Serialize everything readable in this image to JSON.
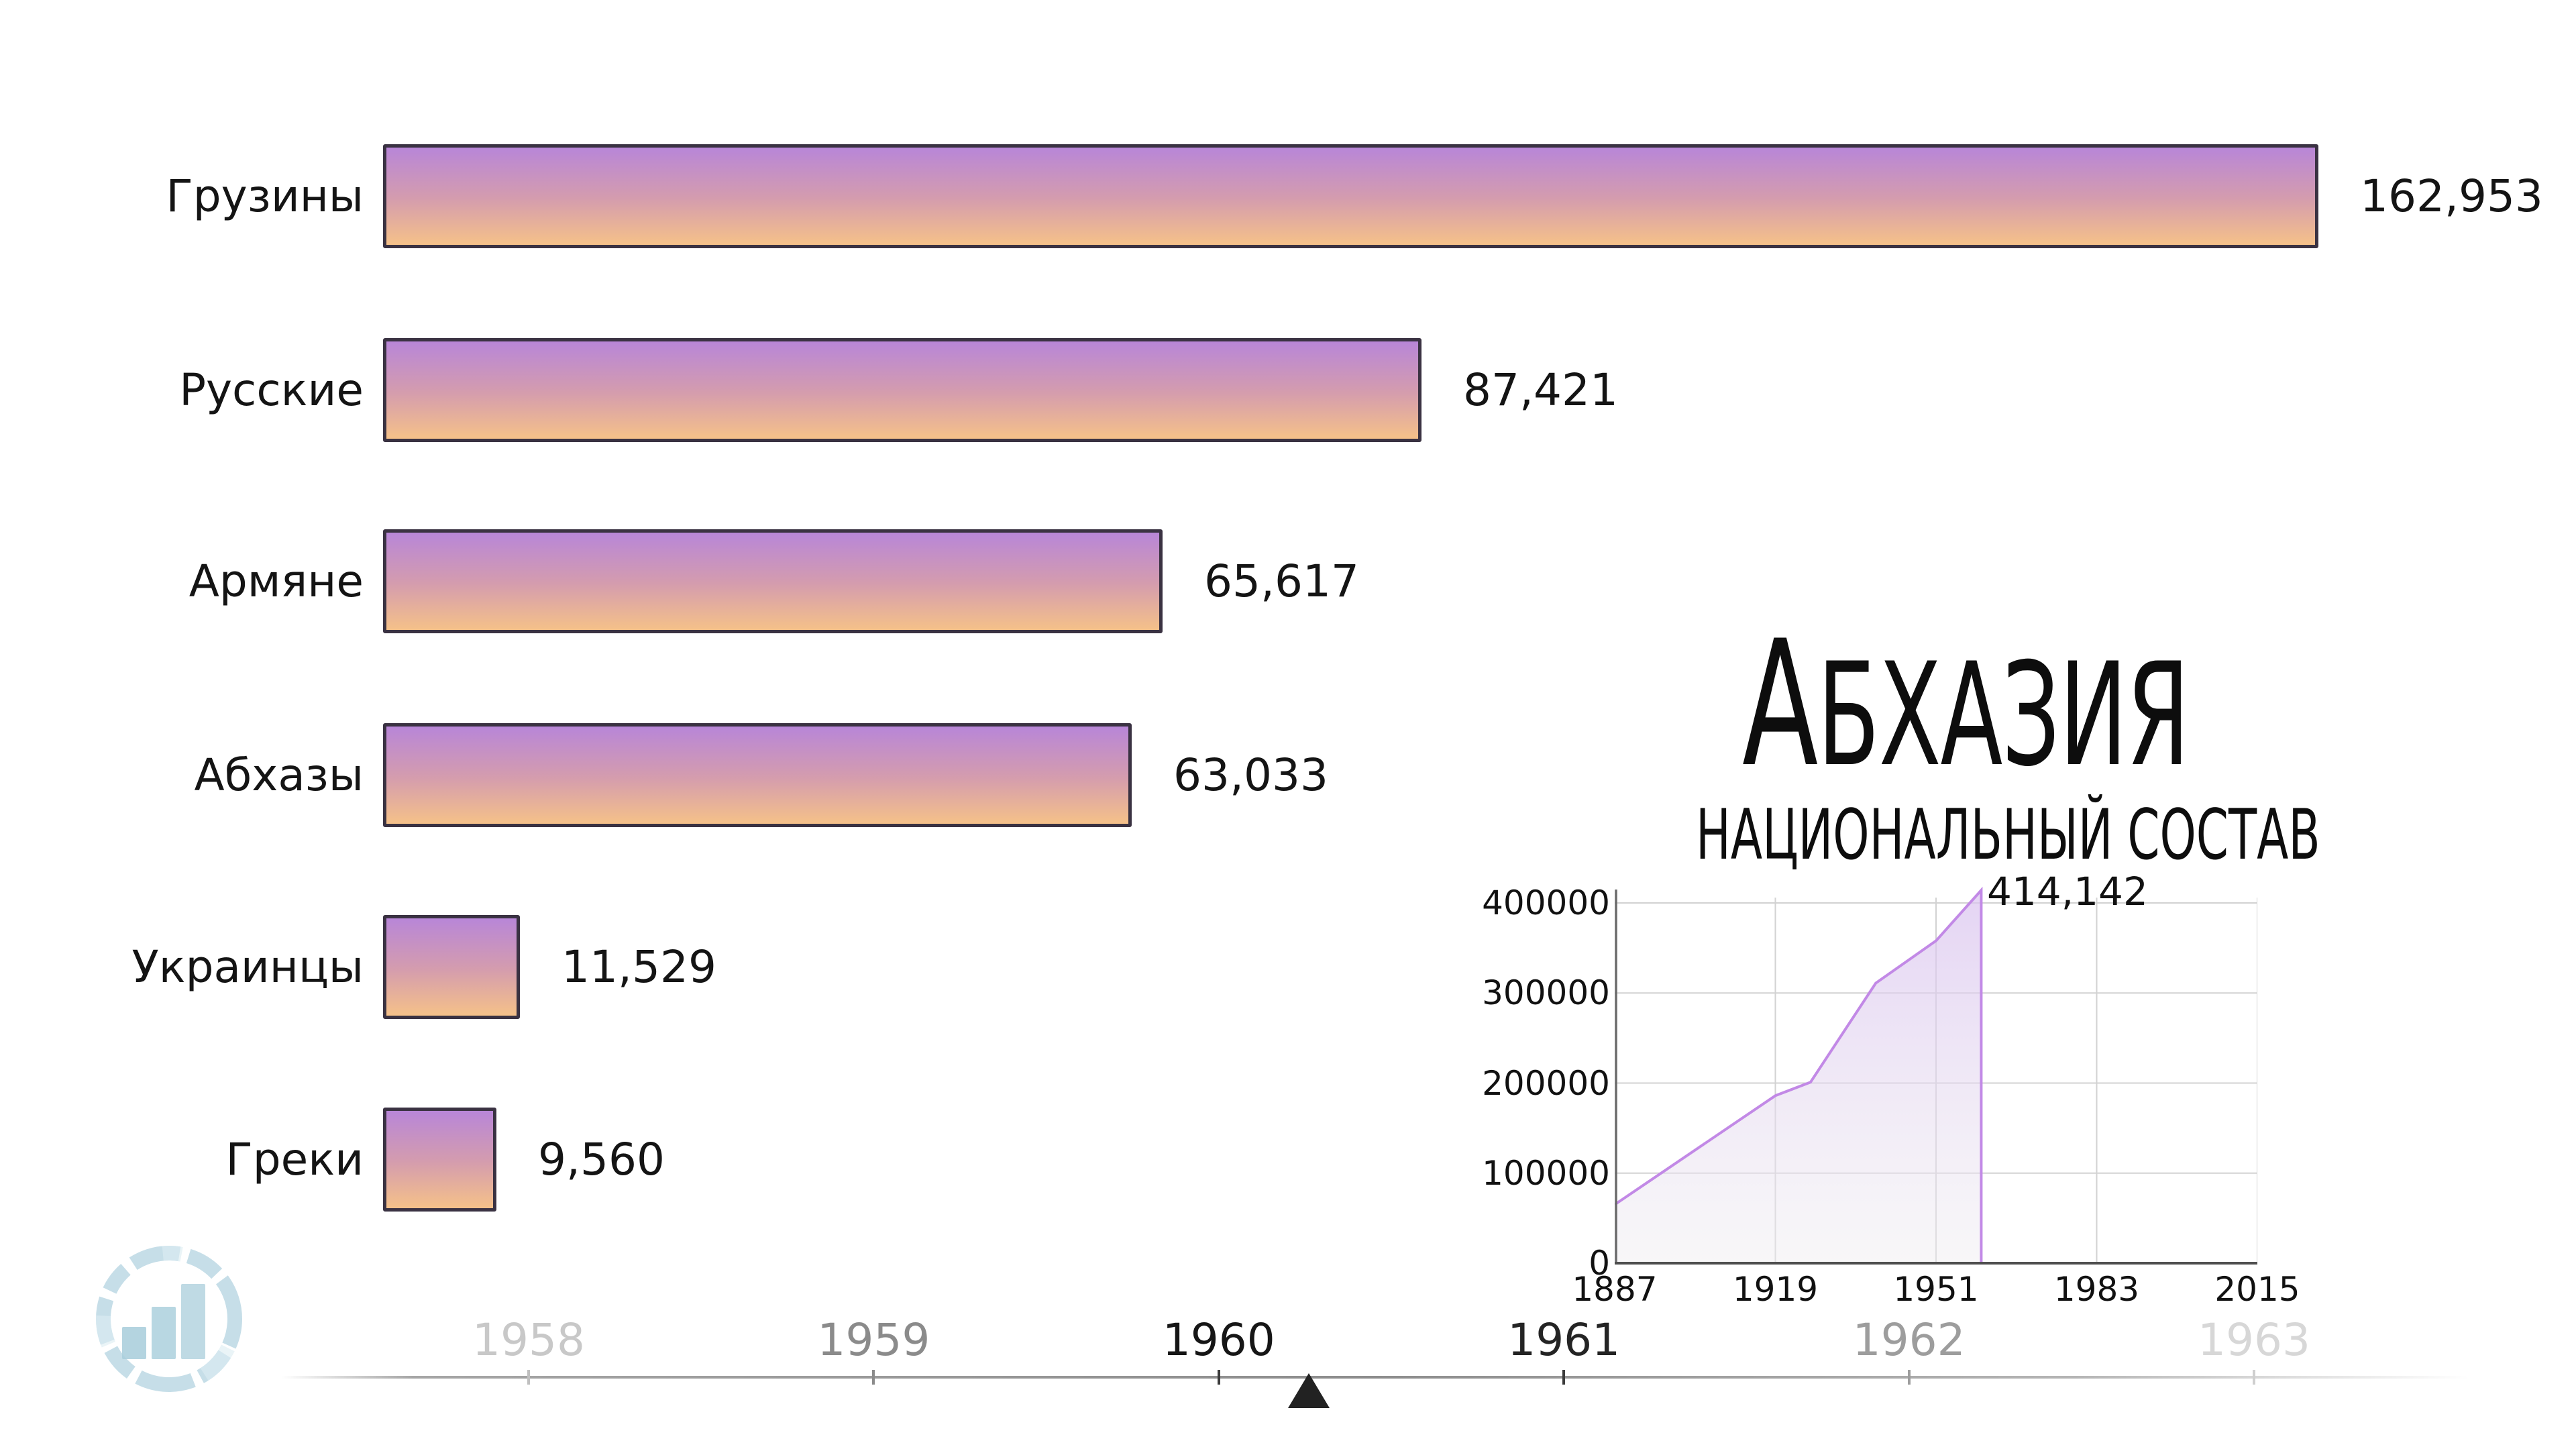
{
  "title": {
    "main": "Абхазия",
    "subtitle": "НАЦИОНАЛЬНЫЙ СОСТАВ"
  },
  "chart_data": [
    {
      "type": "bar",
      "orientation": "horizontal",
      "title": "Абхазия — национальный состав",
      "categories": [
        "Грузины",
        "Русские",
        "Армяне",
        "Абхазы",
        "Украинцы",
        "Греки"
      ],
      "values": [
        162953,
        87421,
        65617,
        63033,
        11529,
        9560
      ],
      "value_labels": [
        "162,953",
        "87,421",
        "65,617",
        "63,033",
        "11,529",
        "9,560"
      ],
      "xlim": [
        0,
        162953
      ],
      "colors": {
        "bar_gradient_top": "#b886d8",
        "bar_gradient_mid": "#d49cae",
        "bar_gradient_bottom": "#f5c189",
        "bar_border": "#3a3242",
        "text": "#141414"
      }
    },
    {
      "type": "area",
      "series": [
        {
          "name": "population",
          "x": [
            1887,
            1919,
            1926,
            1939,
            1951,
            1960
          ],
          "values": [
            65000,
            186000,
            201000,
            311000,
            358000,
            414142
          ]
        }
      ],
      "peak_label": "414,142",
      "x_ticks": [
        1887,
        1919,
        1951,
        1983,
        2015
      ],
      "y_ticks": [
        400000,
        300000,
        200000,
        100000,
        0
      ],
      "xlim": [
        1887,
        2015
      ],
      "ylim": [
        0,
        430000
      ],
      "grid": true,
      "legend": "none",
      "colors": {
        "line": "#c289e6",
        "fill_top": "#d9c2ef",
        "fill_bottom": "#efedf0",
        "gridline": "#d2d2d2",
        "axis": "#4f4f4f"
      }
    }
  ],
  "timeline": {
    "years": [
      {
        "label": "1958",
        "year": 1958,
        "color": "#c8c8c8",
        "tick_color": "#c0c0c0"
      },
      {
        "label": "1959",
        "year": 1959,
        "color": "#8b8b8b",
        "tick_color": "#8b8b8b"
      },
      {
        "label": "1960",
        "year": 1960,
        "color": "#161616",
        "tick_color": "#3c3c3c"
      },
      {
        "label": "1961",
        "year": 1961,
        "color": "#242424",
        "tick_color": "#3c3c3c"
      },
      {
        "label": "1962",
        "year": 1962,
        "color": "#9d9d9d",
        "tick_color": "#9d9d9d"
      },
      {
        "label": "1963",
        "year": 1963,
        "color": "#d7d7d7",
        "tick_color": "#cfcfcf"
      }
    ],
    "marker_year": 1960.26,
    "marker_color": "#222222"
  },
  "watermark": {
    "icon": "bar-chart-circle-logo",
    "color": "#a9cedd"
  }
}
